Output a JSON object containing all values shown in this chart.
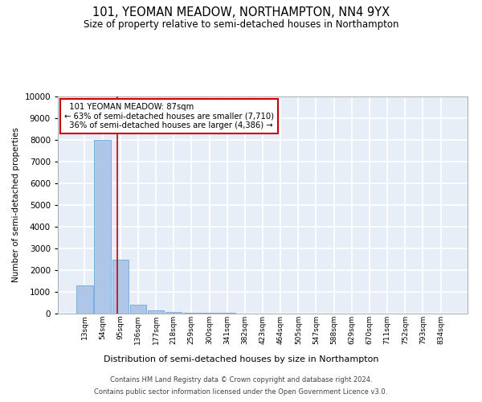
{
  "title": "101, YEOMAN MEADOW, NORTHAMPTON, NN4 9YX",
  "subtitle": "Size of property relative to semi-detached houses in Northampton",
  "xlabel": "Distribution of semi-detached houses by size in Northampton",
  "ylabel": "Number of semi-detached properties",
  "bar_color": "#aec6e8",
  "bar_edge_color": "#5a9fd4",
  "background_color": "#e8eef8",
  "grid_color": "#ffffff",
  "bin_labels": [
    "13sqm",
    "54sqm",
    "95sqm",
    "136sqm",
    "177sqm",
    "218sqm",
    "259sqm",
    "300sqm",
    "341sqm",
    "382sqm",
    "423sqm",
    "464sqm",
    "505sqm",
    "547sqm",
    "588sqm",
    "629sqm",
    "670sqm",
    "711sqm",
    "752sqm",
    "793sqm",
    "834sqm"
  ],
  "bar_heights": [
    1300,
    8000,
    2500,
    400,
    150,
    80,
    50,
    30,
    20,
    15,
    10,
    8,
    5,
    4,
    3,
    2,
    2,
    1,
    1,
    1,
    0
  ],
  "ylim": [
    0,
    10000
  ],
  "yticks": [
    0,
    1000,
    2000,
    3000,
    4000,
    5000,
    6000,
    7000,
    8000,
    9000,
    10000
  ],
  "property_label": "101 YEOMAN MEADOW: 87sqm",
  "pct_smaller": 63,
  "pct_larger": 36,
  "n_smaller": 7710,
  "n_larger": 4386,
  "red_line_bin": 1.82,
  "footer_line1": "Contains HM Land Registry data © Crown copyright and database right 2024.",
  "footer_line2": "Contains public sector information licensed under the Open Government Licence v3.0."
}
